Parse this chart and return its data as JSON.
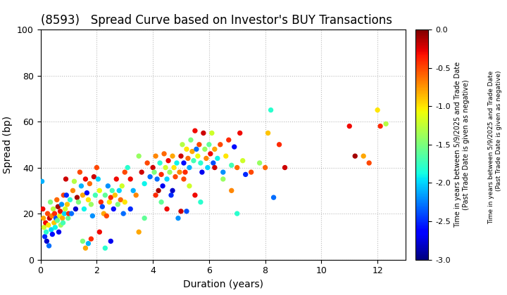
{
  "title": "(8593)   Spread Curve based on Investor's BUY Transactions",
  "xlabel": "Duration (years)",
  "ylabel": "Spread (bp)",
  "colorbar_label": "Time in years between 5/9/2025 and Trade Date\n(Past Trade Date is given as negative)",
  "xlim": [
    0,
    13
  ],
  "ylim": [
    0,
    100
  ],
  "xticks": [
    0,
    2,
    4,
    6,
    8,
    10,
    12
  ],
  "yticks": [
    0,
    20,
    40,
    60,
    80,
    100
  ],
  "cmap_min": -3.0,
  "cmap_max": 0.0,
  "cmap_ticks": [
    0.0,
    -0.5,
    -1.0,
    -1.5,
    -2.0,
    -2.5,
    -3.0
  ],
  "scatter_points": [
    [
      0.05,
      34,
      -2.1
    ],
    [
      0.08,
      22,
      -0.3
    ],
    [
      0.1,
      18,
      -0.8
    ],
    [
      0.12,
      14,
      -1.2
    ],
    [
      0.15,
      10,
      -2.5
    ],
    [
      0.18,
      16,
      -0.3
    ],
    [
      0.2,
      12,
      -1.8
    ],
    [
      0.22,
      8,
      -2.8
    ],
    [
      0.25,
      20,
      -0.5
    ],
    [
      0.28,
      15,
      -1.0
    ],
    [
      0.3,
      6,
      -2.3
    ],
    [
      0.32,
      18,
      -0.2
    ],
    [
      0.35,
      25,
      -1.5
    ],
    [
      0.38,
      13,
      -2.0
    ],
    [
      0.4,
      19,
      -0.7
    ],
    [
      0.42,
      11,
      -2.6
    ],
    [
      0.45,
      22,
      -1.3
    ],
    [
      0.48,
      16,
      -0.9
    ],
    [
      0.5,
      20,
      -0.4
    ],
    [
      0.52,
      14,
      -1.9
    ],
    [
      0.55,
      18,
      -2.4
    ],
    [
      0.58,
      26,
      -0.6
    ],
    [
      0.6,
      17,
      -1.6
    ],
    [
      0.62,
      23,
      -0.1
    ],
    [
      0.65,
      12,
      -2.7
    ],
    [
      0.68,
      19,
      -1.1
    ],
    [
      0.7,
      21,
      -0.3
    ],
    [
      0.72,
      15,
      -1.4
    ],
    [
      0.75,
      24,
      -2.2
    ],
    [
      0.78,
      18,
      -0.8
    ],
    [
      0.8,
      16,
      -1.7
    ],
    [
      0.82,
      28,
      -0.5
    ],
    [
      0.85,
      20,
      -2.0
    ],
    [
      0.88,
      22,
      -1.2
    ],
    [
      0.9,
      35,
      -0.2
    ],
    [
      0.92,
      28,
      -2.5
    ],
    [
      0.95,
      24,
      -0.9
    ],
    [
      0.98,
      18,
      -1.6
    ],
    [
      1.0,
      20,
      -0.4
    ],
    [
      1.05,
      26,
      -1.8
    ],
    [
      1.1,
      20,
      -2.3
    ],
    [
      1.15,
      30,
      -0.7
    ],
    [
      1.2,
      34,
      -1.3
    ],
    [
      1.25,
      22,
      -2.8
    ],
    [
      1.3,
      27,
      -0.1
    ],
    [
      1.35,
      25,
      -1.5
    ],
    [
      1.4,
      38,
      -0.5
    ],
    [
      1.45,
      32,
      -2.1
    ],
    [
      1.5,
      28,
      -0.8
    ],
    [
      1.55,
      22,
      -1.9
    ],
    [
      1.6,
      35,
      -0.3
    ],
    [
      1.65,
      29,
      -2.6
    ],
    [
      1.7,
      26,
      -1.0
    ],
    [
      1.75,
      33,
      -0.6
    ],
    [
      1.8,
      24,
      -1.4
    ],
    [
      1.85,
      19,
      -2.2
    ],
    [
      1.9,
      36,
      -0.2
    ],
    [
      1.95,
      28,
      -1.7
    ],
    [
      1.5,
      8,
      -1.5
    ],
    [
      1.6,
      5,
      -0.8
    ],
    [
      1.7,
      7,
      -2.1
    ],
    [
      1.8,
      9,
      -0.4
    ],
    [
      2.0,
      40,
      -0.5
    ],
    [
      2.05,
      35,
      -2.0
    ],
    [
      2.1,
      30,
      -1.1
    ],
    [
      2.15,
      25,
      -0.4
    ],
    [
      2.2,
      23,
      -2.4
    ],
    [
      2.25,
      20,
      -0.8
    ],
    [
      2.3,
      28,
      -1.6
    ],
    [
      2.35,
      19,
      -0.5
    ],
    [
      2.4,
      32,
      -2.2
    ],
    [
      2.45,
      25,
      -1.0
    ],
    [
      2.5,
      27,
      -0.4
    ],
    [
      2.55,
      30,
      -1.7
    ],
    [
      2.6,
      22,
      -2.6
    ],
    [
      2.65,
      28,
      -0.9
    ],
    [
      2.7,
      35,
      -0.3
    ],
    [
      2.75,
      24,
      -1.5
    ],
    [
      2.8,
      30,
      -2.0
    ],
    [
      2.85,
      26,
      -0.6
    ],
    [
      2.9,
      32,
      -1.2
    ],
    [
      2.95,
      20,
      -2.3
    ],
    [
      2.1,
      12,
      -0.3
    ],
    [
      2.3,
      5,
      -1.8
    ],
    [
      2.5,
      8,
      -2.7
    ],
    [
      3.0,
      38,
      -0.5
    ],
    [
      3.1,
      40,
      -1.8
    ],
    [
      3.2,
      35,
      -0.3
    ],
    [
      3.3,
      30,
      -2.1
    ],
    [
      3.4,
      28,
      -0.7
    ],
    [
      3.5,
      45,
      -1.4
    ],
    [
      3.6,
      38,
      -0.2
    ],
    [
      3.7,
      33,
      -1.9
    ],
    [
      3.8,
      42,
      -0.5
    ],
    [
      3.9,
      36,
      -2.3
    ],
    [
      3.0,
      25,
      -1.0
    ],
    [
      3.2,
      22,
      -2.5
    ],
    [
      3.5,
      12,
      -0.8
    ],
    [
      3.7,
      18,
      -1.6
    ],
    [
      4.0,
      40,
      -0.2
    ],
    [
      4.05,
      38,
      -1.5
    ],
    [
      4.1,
      45,
      -0.7
    ],
    [
      4.15,
      35,
      -2.3
    ],
    [
      4.2,
      30,
      -0.1
    ],
    [
      4.25,
      42,
      -1.8
    ],
    [
      4.3,
      37,
      -0.4
    ],
    [
      4.35,
      32,
      -2.7
    ],
    [
      4.4,
      46,
      -0.6
    ],
    [
      4.45,
      40,
      -1.2
    ],
    [
      4.5,
      35,
      -2.0
    ],
    [
      4.55,
      43,
      -0.3
    ],
    [
      4.6,
      38,
      -1.4
    ],
    [
      4.65,
      28,
      -2.5
    ],
    [
      4.7,
      45,
      -0.8
    ],
    [
      4.75,
      40,
      -1.0
    ],
    [
      4.8,
      36,
      -0.5
    ],
    [
      4.85,
      42,
      -1.9
    ],
    [
      4.9,
      18,
      -2.2
    ],
    [
      4.95,
      38,
      -0.7
    ],
    [
      4.1,
      28,
      -0.4
    ],
    [
      4.3,
      25,
      -1.6
    ],
    [
      4.5,
      22,
      -0.3
    ],
    [
      4.7,
      30,
      -2.8
    ],
    [
      5.0,
      45,
      -0.2
    ],
    [
      5.05,
      50,
      -1.3
    ],
    [
      5.1,
      42,
      -2.6
    ],
    [
      5.15,
      38,
      -0.4
    ],
    [
      5.2,
      48,
      -1.0
    ],
    [
      5.25,
      44,
      -0.6
    ],
    [
      5.3,
      40,
      -2.1
    ],
    [
      5.35,
      52,
      -1.5
    ],
    [
      5.4,
      47,
      -0.8
    ],
    [
      5.45,
      43,
      -1.7
    ],
    [
      5.5,
      56,
      -0.3
    ],
    [
      5.55,
      48,
      -2.3
    ],
    [
      5.6,
      45,
      -1.1
    ],
    [
      5.65,
      50,
      -0.5
    ],
    [
      5.7,
      42,
      -1.8
    ],
    [
      5.75,
      38,
      -2.7
    ],
    [
      5.8,
      55,
      -0.2
    ],
    [
      5.85,
      48,
      -1.4
    ],
    [
      5.9,
      44,
      -0.7
    ],
    [
      5.95,
      40,
      -2.0
    ],
    [
      5.1,
      35,
      -0.5
    ],
    [
      5.3,
      32,
      -1.2
    ],
    [
      5.5,
      28,
      -0.3
    ],
    [
      5.7,
      25,
      -1.8
    ],
    [
      5.2,
      21,
      -2.4
    ],
    [
      5.0,
      21,
      -0.2
    ],
    [
      6.0,
      50,
      -1.6
    ],
    [
      6.05,
      46,
      -0.3
    ],
    [
      6.1,
      55,
      -1.2
    ],
    [
      6.15,
      42,
      -2.4
    ],
    [
      6.2,
      48,
      -0.8
    ],
    [
      6.3,
      44,
      -1.9
    ],
    [
      6.4,
      50,
      -0.5
    ],
    [
      6.5,
      38,
      -2.2
    ],
    [
      6.6,
      45,
      -1.0
    ],
    [
      6.7,
      52,
      -0.4
    ],
    [
      6.8,
      41,
      -1.7
    ],
    [
      6.9,
      49,
      -2.6
    ],
    [
      6.2,
      40,
      -0.2
    ],
    [
      6.5,
      35,
      -1.4
    ],
    [
      6.8,
      30,
      -0.7
    ],
    [
      7.0,
      20,
      -1.8
    ],
    [
      7.1,
      55,
      -0.3
    ],
    [
      7.2,
      43,
      -1.2
    ],
    [
      7.3,
      37,
      -2.5
    ],
    [
      7.5,
      38,
      -0.5
    ],
    [
      7.8,
      42,
      -1.4
    ],
    [
      7.0,
      40,
      -0.6
    ],
    [
      8.0,
      40,
      -0.6
    ],
    [
      8.1,
      55,
      -0.9
    ],
    [
      8.2,
      65,
      -1.8
    ],
    [
      8.3,
      27,
      -2.3
    ],
    [
      8.5,
      50,
      -0.4
    ],
    [
      8.7,
      40,
      -0.2
    ],
    [
      11.0,
      58,
      -0.3
    ],
    [
      11.2,
      45,
      -0.1
    ],
    [
      11.5,
      45,
      -0.8
    ],
    [
      11.7,
      42,
      -0.5
    ],
    [
      12.0,
      65,
      -1.0
    ],
    [
      12.1,
      58,
      -0.4
    ],
    [
      12.3,
      59,
      -1.3
    ]
  ],
  "grid_color": "#bbbbbb",
  "bg_color": "#ffffff",
  "title_fontsize": 12,
  "axis_fontsize": 10,
  "dot_size": 28
}
